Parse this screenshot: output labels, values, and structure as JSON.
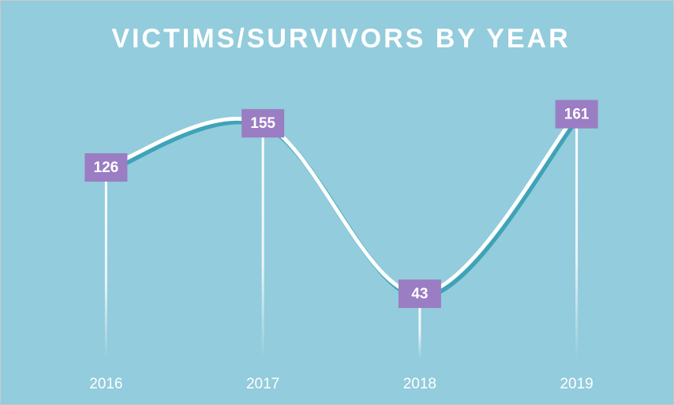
{
  "chart_data": {
    "type": "line",
    "title": "VICTIMS/SURVIVORS BY YEAR",
    "categories": [
      "2016",
      "2017",
      "2018",
      "2019"
    ],
    "values": [
      126,
      155,
      43,
      161
    ],
    "color": "#ffffff",
    "label_color": "#9b7dc3",
    "background": "#93ccdc",
    "ylim": [
      0,
      180
    ],
    "smooth": true
  }
}
